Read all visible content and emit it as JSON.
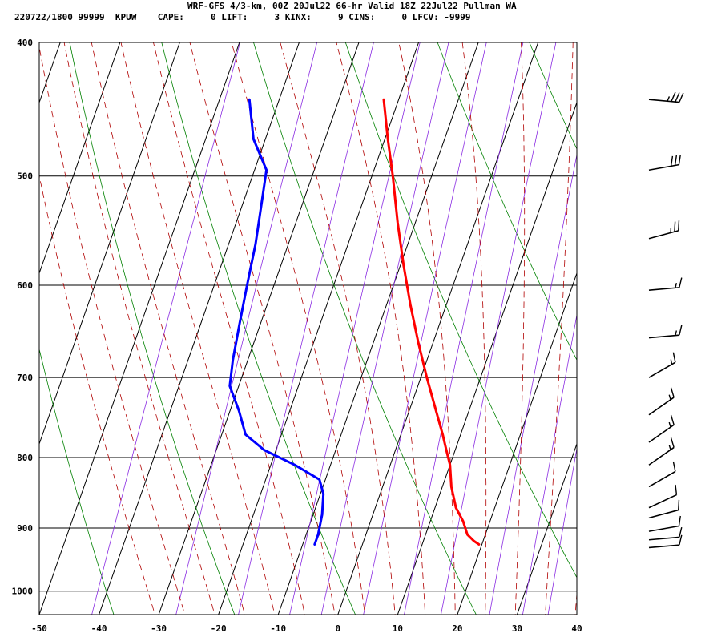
{
  "header": {
    "title": "WRF-GFS 4/3-km, 00Z 20Jul22 66-hr Valid 18Z 22Jul22 Pullman WA",
    "station_line": "220722/1800 99999  KPUW    CAPE:     0 LIFT:     3 KINX:     9 CINS:     0 LFCV: -9999"
  },
  "colors": {
    "temperature": "#ff0000",
    "dewpoint": "#0000ff",
    "isotherm_grid": "#000000",
    "dry_adiabat": "#008000",
    "moist_adiabat": "#b00000",
    "mixing_ratio": "#8a2be2"
  },
  "chart_data": {
    "type": "skew-t log-p sounding",
    "x_axis": {
      "range": [
        -50,
        40
      ],
      "ticks": [
        -50,
        -40,
        -30,
        -20,
        -10,
        0,
        10,
        20,
        30,
        40
      ]
    },
    "y_axis": {
      "scale": "log",
      "range": [
        1040,
        400
      ],
      "ticks": [
        400,
        500,
        600,
        700,
        800,
        900,
        1000
      ]
    },
    "grid": true,
    "series": [
      {
        "key": "temperature",
        "points": [
          [
            440,
            -22.5
          ],
          [
            470,
            -19.5
          ],
          [
            500,
            -16.5
          ],
          [
            540,
            -13.0
          ],
          [
            580,
            -9.5
          ],
          [
            620,
            -6.0
          ],
          [
            660,
            -2.5
          ],
          [
            700,
            1.0
          ],
          [
            740,
            4.5
          ],
          [
            770,
            7.0
          ],
          [
            790,
            8.5
          ],
          [
            810,
            10.0
          ],
          [
            840,
            11.5
          ],
          [
            870,
            13.5
          ],
          [
            890,
            15.5
          ],
          [
            910,
            17.0
          ],
          [
            920,
            18.5
          ],
          [
            925,
            19.5
          ]
        ]
      },
      {
        "key": "dewpoint",
        "points": [
          [
            440,
            -45.0
          ],
          [
            470,
            -42.0
          ],
          [
            495,
            -38.0
          ],
          [
            520,
            -37.0
          ],
          [
            560,
            -35.5
          ],
          [
            600,
            -34.5
          ],
          [
            640,
            -33.5
          ],
          [
            680,
            -32.5
          ],
          [
            710,
            -31.5
          ],
          [
            740,
            -28.5
          ],
          [
            770,
            -26.0
          ],
          [
            790,
            -22.0
          ],
          [
            810,
            -16.0
          ],
          [
            830,
            -11.0
          ],
          [
            850,
            -9.5
          ],
          [
            880,
            -8.5
          ],
          [
            910,
            -8.0
          ],
          [
            925,
            -8.0
          ]
        ]
      }
    ],
    "wind_barbs": [
      {
        "p": 440,
        "dir": 275,
        "kt": 35
      },
      {
        "p": 495,
        "dir": 260,
        "kt": 30
      },
      {
        "p": 555,
        "dir": 255,
        "kt": 25
      },
      {
        "p": 605,
        "dir": 265,
        "kt": 15
      },
      {
        "p": 655,
        "dir": 265,
        "kt": 15
      },
      {
        "p": 700,
        "dir": 240,
        "kt": 15
      },
      {
        "p": 745,
        "dir": 235,
        "kt": 15
      },
      {
        "p": 780,
        "dir": 235,
        "kt": 15
      },
      {
        "p": 810,
        "dir": 235,
        "kt": 15
      },
      {
        "p": 840,
        "dir": 240,
        "kt": 10
      },
      {
        "p": 870,
        "dir": 245,
        "kt": 10
      },
      {
        "p": 885,
        "dir": 255,
        "kt": 10
      },
      {
        "p": 905,
        "dir": 260,
        "kt": 10
      },
      {
        "p": 918,
        "dir": 265,
        "kt": 10
      },
      {
        "p": 930,
        "dir": 265,
        "kt": 10
      }
    ]
  }
}
